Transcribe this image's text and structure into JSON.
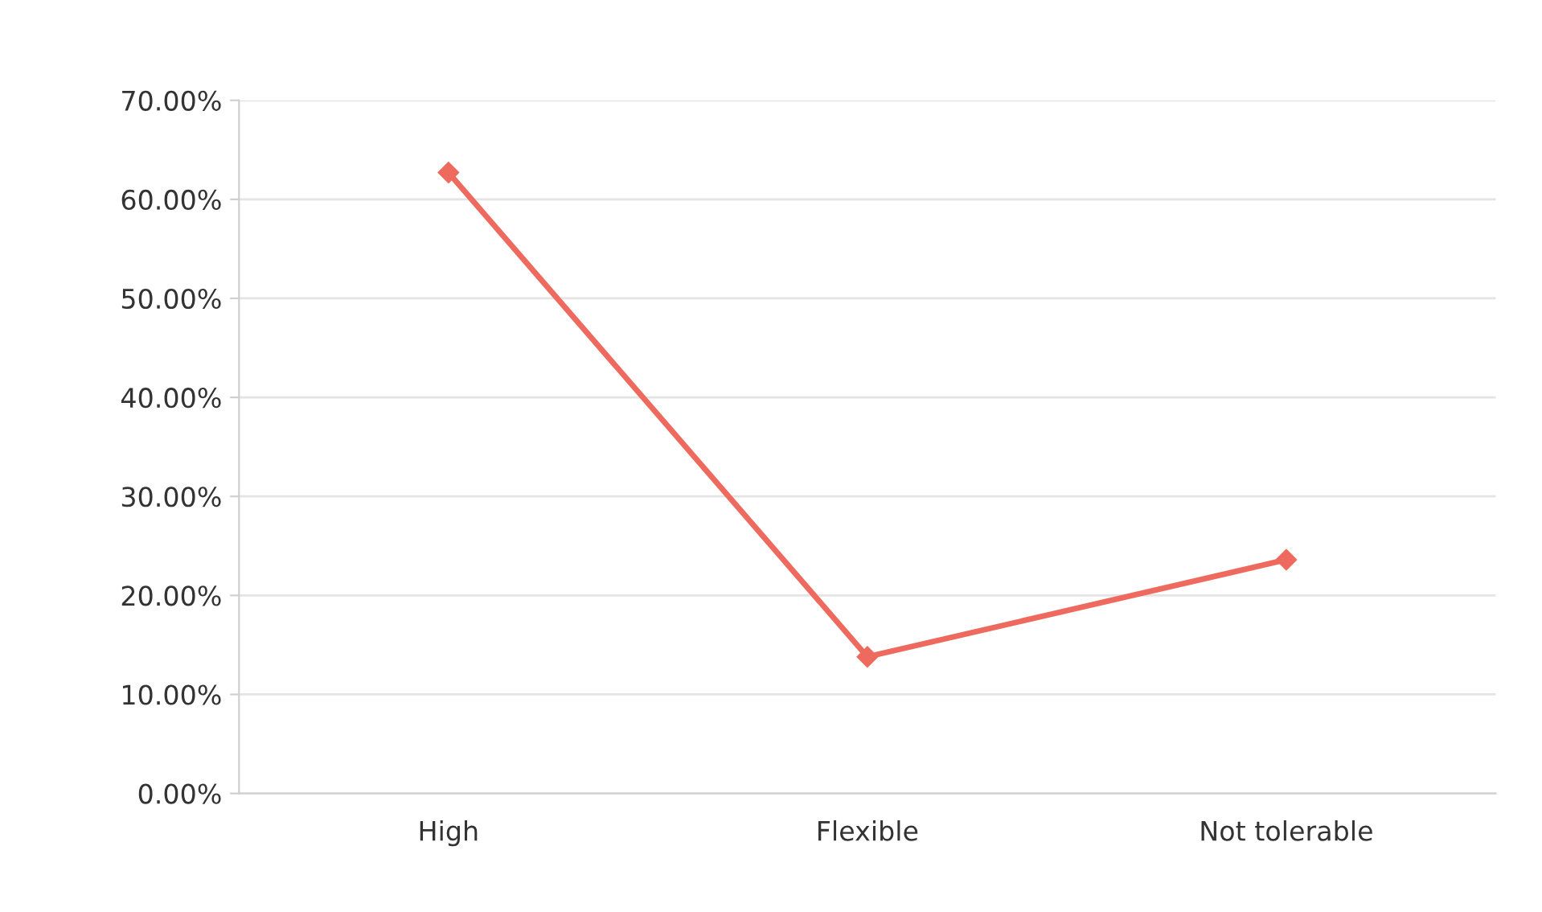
{
  "chart_data": {
    "type": "line",
    "categories": [
      "High",
      "Flexible",
      "Not tolerable"
    ],
    "series": [
      {
        "color": "#ee6a5e",
        "values": [
          62.7,
          13.8,
          23.6
        ]
      }
    ],
    "ylim": [
      0,
      70
    ],
    "yticks": [
      {
        "value": 0,
        "label": "0.00%"
      },
      {
        "value": 10,
        "label": "10.00%"
      },
      {
        "value": 20,
        "label": "20.00%"
      },
      {
        "value": 30,
        "label": "30.00%"
      },
      {
        "value": 40,
        "label": "40.00%"
      },
      {
        "value": 50,
        "label": "50.00%"
      },
      {
        "value": 60,
        "label": "60.00%"
      },
      {
        "value": 70,
        "label": "70.00%"
      }
    ],
    "grid": "y",
    "marker": "diamond",
    "line_style": "solid",
    "legend": false
  }
}
